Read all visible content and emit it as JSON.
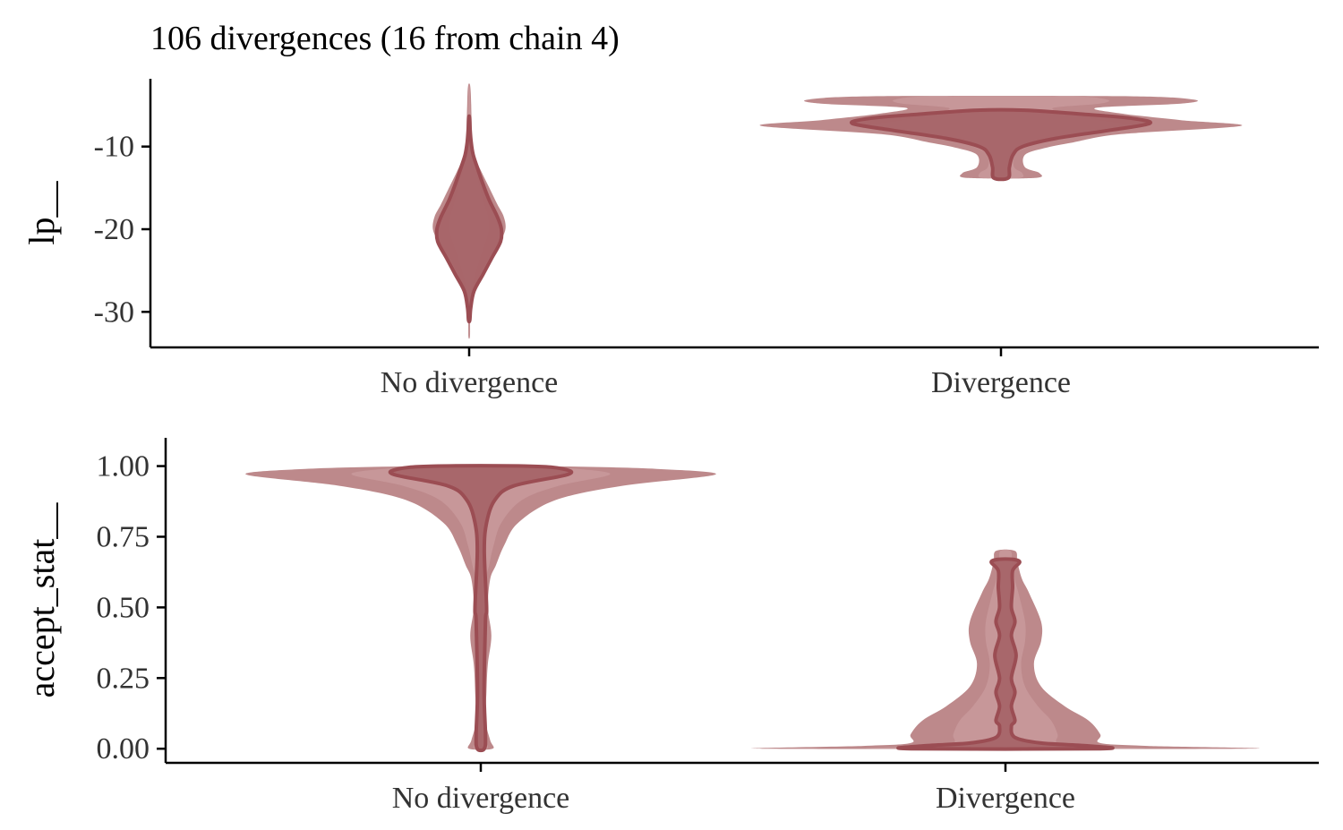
{
  "title": "106 divergences (16 from chain 4)",
  "colors": {
    "outer_fill": "#b98385",
    "mid_fill": "#cfa3a5",
    "inner_fill": "#a66468",
    "inner_stroke": "#9b4d53"
  },
  "chart_data": [
    {
      "type": "violin",
      "ylabel": "lp__",
      "categories": [
        "No divergence",
        "Divergence"
      ],
      "ylim": [
        -34.3,
        -1.8
      ],
      "yticks": [
        -30,
        -20,
        -10
      ],
      "ytick_labels": [
        "-30",
        "-20",
        "-10"
      ],
      "violins": [
        {
          "category": "No divergence",
          "outer": [
            [
              -33.0,
              0.01
            ],
            [
              -31.0,
              0.012
            ],
            [
              -29.0,
              0.02
            ],
            [
              -27.5,
              0.05
            ],
            [
              -25.5,
              0.14
            ],
            [
              -23.5,
              0.25
            ],
            [
              -21.5,
              0.38
            ],
            [
              -20.0,
              0.45
            ],
            [
              -18.5,
              0.43
            ],
            [
              -17.0,
              0.35
            ],
            [
              -15.0,
              0.25
            ],
            [
              -13.0,
              0.15
            ],
            [
              -11.0,
              0.06
            ],
            [
              -9.0,
              0.035
            ],
            [
              -7.0,
              0.03
            ],
            [
              -5.0,
              0.025
            ],
            [
              -3.5,
              0.02
            ],
            [
              -2.5,
              0.01
            ]
          ],
          "inner": [
            [
              -31.0,
              0.008
            ],
            [
              -29.5,
              0.02
            ],
            [
              -27.5,
              0.06
            ],
            [
              -25.5,
              0.17
            ],
            [
              -23.5,
              0.28
            ],
            [
              -21.5,
              0.39
            ],
            [
              -20.0,
              0.4
            ],
            [
              -18.5,
              0.35
            ],
            [
              -16.5,
              0.25
            ],
            [
              -14.5,
              0.17
            ],
            [
              -12.5,
              0.1
            ],
            [
              -11.0,
              0.05
            ],
            [
              -9.5,
              0.025
            ],
            [
              -8.0,
              0.012
            ],
            [
              -6.5,
              0.005
            ]
          ]
        },
        {
          "category": "Divergence",
          "outer": [
            [
              -13.8,
              0.14
            ],
            [
              -13.2,
              0.16
            ],
            [
              -12.5,
              0.1
            ],
            [
              -11.0,
              0.1
            ],
            [
              -10.2,
              0.18
            ],
            [
              -9.5,
              0.3
            ],
            [
              -8.5,
              0.5
            ],
            [
              -7.5,
              1.0
            ],
            [
              -6.8,
              0.75
            ],
            [
              -6.0,
              0.5
            ],
            [
              -5.3,
              0.4
            ],
            [
              -4.8,
              0.75
            ],
            [
              -4.3,
              0.8
            ],
            [
              -3.9,
              0.5
            ]
          ],
          "inner": [
            [
              -13.8,
              0.03
            ],
            [
              -12.5,
              0.035
            ],
            [
              -11.0,
              0.05
            ],
            [
              -10.0,
              0.09
            ],
            [
              -9.0,
              0.23
            ],
            [
              -8.0,
              0.46
            ],
            [
              -7.2,
              0.62
            ],
            [
              -6.6,
              0.55
            ],
            [
              -6.1,
              0.35
            ],
            [
              -5.6,
              0.1
            ]
          ]
        }
      ]
    },
    {
      "type": "violin",
      "ylabel": "accept_stat__",
      "categories": [
        "No divergence",
        "Divergence"
      ],
      "ylim": [
        -0.05,
        1.1
      ],
      "yticks": [
        0.0,
        0.25,
        0.5,
        0.75,
        1.0
      ],
      "ytick_labels": [
        "0.00",
        "0.25",
        "0.50",
        "0.75",
        "1.00"
      ],
      "violins": [
        {
          "category": "No divergence",
          "outer": [
            [
              0.0,
              0.05
            ],
            [
              0.03,
              0.04
            ],
            [
              0.1,
              0.02
            ],
            [
              0.2,
              0.024
            ],
            [
              0.3,
              0.03
            ],
            [
              0.4,
              0.045
            ],
            [
              0.5,
              0.03
            ],
            [
              0.6,
              0.04
            ],
            [
              0.65,
              0.065
            ],
            [
              0.72,
              0.1
            ],
            [
              0.8,
              0.16
            ],
            [
              0.88,
              0.32
            ],
            [
              0.93,
              0.6
            ],
            [
              0.97,
              1.0
            ],
            [
              0.99,
              0.75
            ],
            [
              1.0,
              0.25
            ]
          ],
          "inner": [
            [
              0.0,
              0.015
            ],
            [
              0.05,
              0.02
            ],
            [
              0.2,
              0.014
            ],
            [
              0.45,
              0.02
            ],
            [
              0.5,
              0.025
            ],
            [
              0.7,
              0.015
            ],
            [
              0.8,
              0.025
            ],
            [
              0.88,
              0.06
            ],
            [
              0.93,
              0.14
            ],
            [
              0.97,
              0.37
            ],
            [
              0.99,
              0.35
            ],
            [
              1.0,
              0.2
            ]
          ]
        },
        {
          "category": "Divergence",
          "outer": [
            [
              0.0,
              1.0
            ],
            [
              0.01,
              0.6
            ],
            [
              0.02,
              0.4
            ],
            [
              0.05,
              0.4
            ],
            [
              0.1,
              0.35
            ],
            [
              0.15,
              0.25
            ],
            [
              0.22,
              0.15
            ],
            [
              0.3,
              0.12
            ],
            [
              0.38,
              0.15
            ],
            [
              0.45,
              0.15
            ],
            [
              0.55,
              0.1
            ],
            [
              0.6,
              0.07
            ],
            [
              0.66,
              0.05
            ],
            [
              0.7,
              0.04
            ]
          ],
          "inner": [
            [
              0.0,
              0.4
            ],
            [
              0.01,
              0.35
            ],
            [
              0.02,
              0.15
            ],
            [
              0.04,
              0.04
            ],
            [
              0.08,
              0.025
            ],
            [
              0.1,
              0.04
            ],
            [
              0.15,
              0.025
            ],
            [
              0.2,
              0.04
            ],
            [
              0.25,
              0.025
            ],
            [
              0.33,
              0.045
            ],
            [
              0.4,
              0.025
            ],
            [
              0.45,
              0.04
            ],
            [
              0.5,
              0.025
            ],
            [
              0.57,
              0.03
            ],
            [
              0.63,
              0.03
            ],
            [
              0.66,
              0.06
            ],
            [
              0.67,
              0.03
            ]
          ]
        }
      ]
    }
  ]
}
